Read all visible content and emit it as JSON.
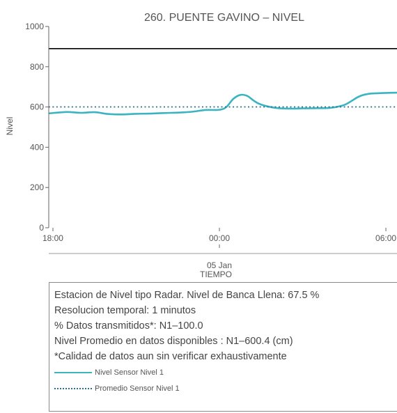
{
  "chart_data": {
    "type": "line",
    "title": "260. PUENTE GAVINO – NIVEL",
    "ylabel": "Nivel",
    "xlabel": "TIEMPO",
    "ylim": [
      0,
      1000
    ],
    "y_ticks": [
      0,
      200,
      400,
      600,
      800,
      1000
    ],
    "x_ticks": [
      {
        "hour": 18,
        "label": "18:00",
        "sublabel": ""
      },
      {
        "hour": 24,
        "label": "00:00",
        "sublabel": "05 Jan"
      },
      {
        "hour": 30,
        "label": "06:00",
        "sublabel": ""
      }
    ],
    "xlim_hours": [
      17.85,
      30.4
    ],
    "reference_line": {
      "value": 890,
      "color": "#000000"
    },
    "series": [
      {
        "name": "Nivel Sensor Nivel 1",
        "color": "#3ab4c0",
        "style": "solid",
        "x_hours": [
          17.85,
          18.5,
          19.0,
          19.5,
          20.0,
          20.5,
          21.0,
          21.5,
          22.0,
          22.5,
          23.0,
          23.5,
          24.0,
          24.25,
          24.5,
          24.75,
          25.0,
          25.25,
          25.5,
          26.0,
          26.5,
          27.0,
          27.5,
          28.0,
          28.5,
          29.0,
          29.25,
          29.5,
          30.0,
          30.4
        ],
        "values": [
          568,
          575,
          571,
          574,
          565,
          563,
          566,
          567,
          570,
          572,
          576,
          585,
          586,
          600,
          640,
          660,
          655,
          630,
          612,
          596,
          592,
          593,
          594,
          596,
          610,
          650,
          662,
          667,
          670,
          671
        ]
      },
      {
        "name": "Promedio Sensor Nivel 1",
        "color": "#2a6f86",
        "style": "dotted",
        "x_hours": [
          17.85,
          30.4
        ],
        "values": [
          600.4,
          600.4
        ]
      }
    ],
    "legend_position": "bottom"
  },
  "info": {
    "line1": "Estacion de Nivel tipo Radar. Nivel de Banca Llena: 67.5 %",
    "line2": "Resolucion temporal: 1 minutos",
    "line3": "% Datos transmitidos*: N1–100.0",
    "line4": "Nivel Promedio en datos disponibles : N1–600.4 (cm)",
    "line5": "*Calidad de datos aun sin verificar exhaustivamente"
  }
}
